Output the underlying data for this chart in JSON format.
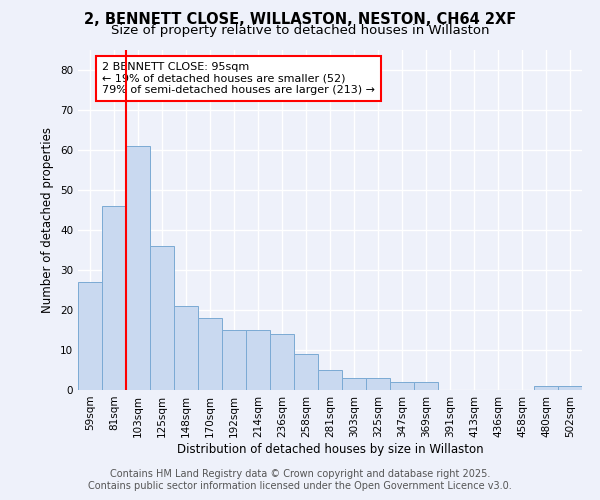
{
  "title_line1": "2, BENNETT CLOSE, WILLASTON, NESTON, CH64 2XF",
  "title_line2": "Size of property relative to detached houses in Willaston",
  "categories": [
    "59sqm",
    "81sqm",
    "103sqm",
    "125sqm",
    "148sqm",
    "170sqm",
    "192sqm",
    "214sqm",
    "236sqm",
    "258sqm",
    "281sqm",
    "303sqm",
    "325sqm",
    "347sqm",
    "369sqm",
    "391sqm",
    "413sqm",
    "436sqm",
    "458sqm",
    "480sqm",
    "502sqm"
  ],
  "values": [
    27,
    46,
    61,
    36,
    21,
    18,
    15,
    15,
    14,
    9,
    5,
    3,
    3,
    2,
    2,
    0,
    0,
    0,
    0,
    1,
    1
  ],
  "bar_color": "#c9d9f0",
  "bar_edge_color": "#7baad4",
  "ylabel": "Number of detached properties",
  "xlabel": "Distribution of detached houses by size in Willaston",
  "ylim": [
    0,
    85
  ],
  "yticks": [
    0,
    10,
    20,
    30,
    40,
    50,
    60,
    70,
    80
  ],
  "red_line_x": 1.5,
  "annotation_text": "2 BENNETT CLOSE: 95sqm\n← 19% of detached houses are smaller (52)\n79% of semi-detached houses are larger (213) →",
  "footer_line1": "Contains HM Land Registry data © Crown copyright and database right 2025.",
  "footer_line2": "Contains public sector information licensed under the Open Government Licence v3.0.",
  "background_color": "#eef1fa",
  "plot_background_color": "#eef1fa",
  "grid_color": "#ffffff",
  "title_fontsize": 10.5,
  "subtitle_fontsize": 9.5,
  "axis_label_fontsize": 8.5,
  "tick_fontsize": 7.5,
  "annotation_fontsize": 8,
  "footer_fontsize": 7
}
